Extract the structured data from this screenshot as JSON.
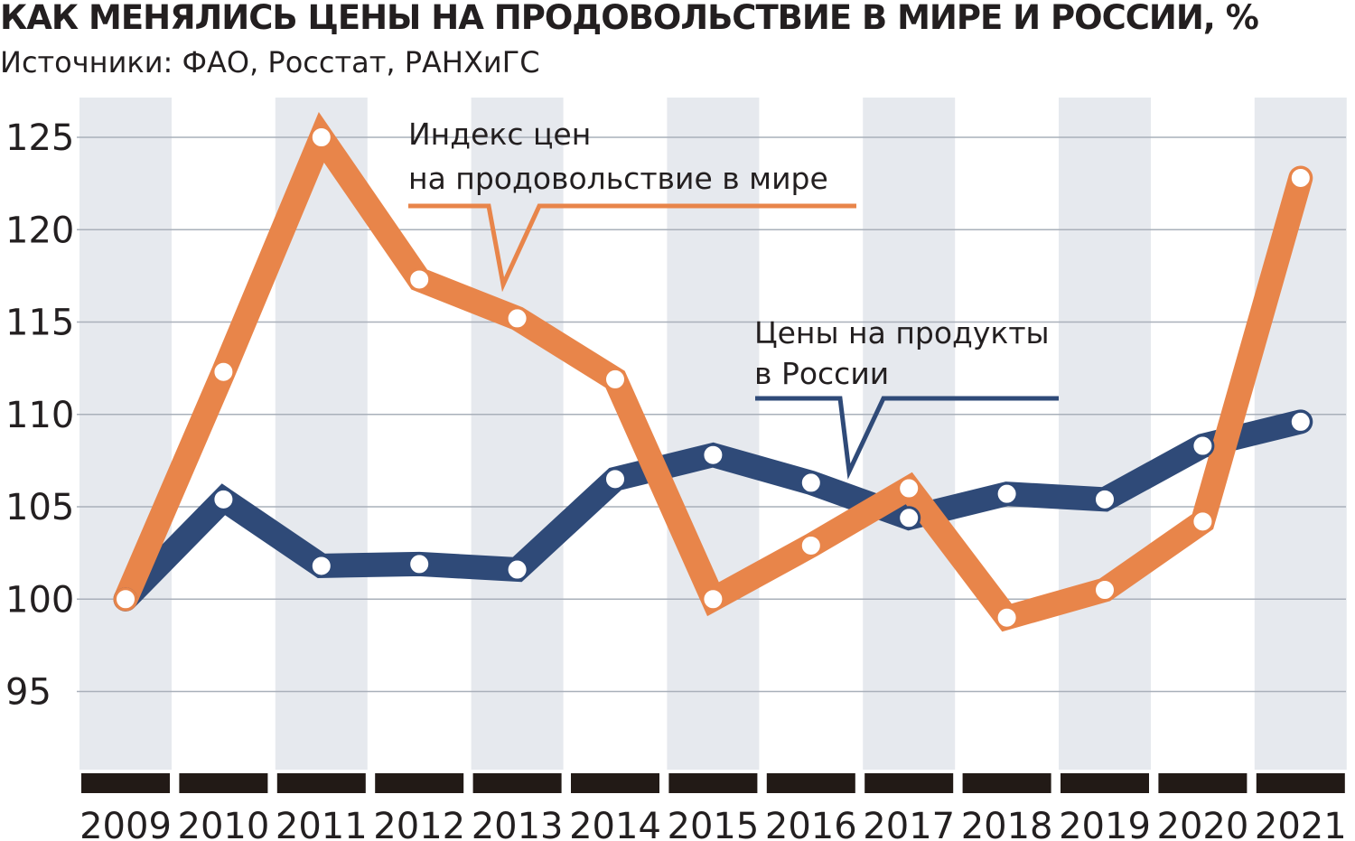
{
  "title": "КАК МЕНЯЛИСЬ ЦЕНЫ НА ПРОДОВОЛЬСТВИЕ В МИРЕ И РОССИИ, %",
  "subtitle": "Источники: ФАО, Росстат, РАНХиГС",
  "colors": {
    "world": "#e8854a",
    "russia": "#2f4a78",
    "band": "#e6e9ee",
    "grid": "#a9b0ba",
    "axis_bar": "#221a16"
  },
  "chart_data": {
    "type": "line",
    "title": "КАК МЕНЯЛИСЬ ЦЕНЫ НА ПРОДОВОЛЬСТВИЕ В МИРЕ И РОССИИ, %",
    "xlabel": "",
    "ylabel": "",
    "x": [
      "2009",
      "2010",
      "2011",
      "2012",
      "2013",
      "2014",
      "2015",
      "2016",
      "2017",
      "2018",
      "2019",
      "2020",
      "2021"
    ],
    "y_ticks": [
      95,
      100,
      105,
      110,
      115,
      120,
      125
    ],
    "ylim": [
      90.5,
      126.5
    ],
    "grid": true,
    "series": [
      {
        "name": "Индекс цен на продовольствие в мире",
        "label_lines": [
          "Индекс цен",
          "на продовольствие в мире"
        ],
        "color_key": "world",
        "values": [
          100.0,
          112.3,
          125.0,
          117.3,
          115.2,
          111.9,
          100.0,
          102.9,
          106.0,
          99.0,
          100.5,
          104.2,
          122.8
        ]
      },
      {
        "name": "Цены на продукты в России",
        "label_lines": [
          "Цены на продукты",
          "в России"
        ],
        "color_key": "russia",
        "values": [
          100.0,
          105.4,
          101.8,
          101.9,
          101.6,
          106.5,
          107.8,
          106.3,
          104.4,
          105.7,
          105.4,
          108.3,
          109.6
        ]
      }
    ]
  }
}
